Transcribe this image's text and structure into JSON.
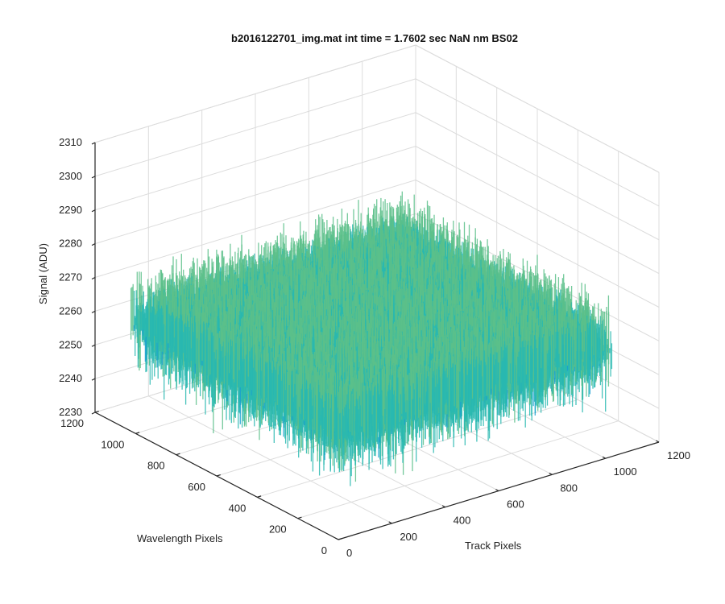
{
  "chart_data": {
    "type": "surface",
    "title": "b2016122701_img.mat int time = 1.7602 sec  NaN nm BS02",
    "xlabel": "Track Pixels",
    "ylabel": "Wavelength Pixels",
    "zlabel": "Signal (ADU)",
    "xlim": [
      0,
      1200
    ],
    "ylim": [
      0,
      1200
    ],
    "zlim": [
      2230,
      2310
    ],
    "x_ticks": [
      0,
      200,
      400,
      600,
      800,
      1000,
      1200
    ],
    "y_ticks": [
      0,
      200,
      400,
      600,
      800,
      1000,
      1200
    ],
    "z_ticks": [
      2230,
      2240,
      2250,
      2260,
      2270,
      2280,
      2290,
      2300,
      2310
    ],
    "x_tick_labels": [
      "0",
      "200",
      "400",
      "600",
      "800",
      "1000",
      "1200"
    ],
    "y_tick_labels": [
      "0",
      "200",
      "400",
      "600",
      "800",
      "1000",
      "1200"
    ],
    "z_tick_labels": [
      "2230",
      "2240",
      "2250",
      "2260",
      "2270",
      "2280",
      "2290",
      "2300",
      "2310"
    ],
    "data_extent": {
      "x": [
        1,
        1024
      ],
      "y": [
        1,
        1024
      ]
    },
    "signal_mean": 2268,
    "signal_noise_range": [
      2238,
      2305
    ],
    "grid": true,
    "colormap": [
      "#0072bd",
      "#1a9fd0",
      "#29b8b0",
      "#5cc08a",
      "#a8c85a",
      "#e4c238"
    ]
  }
}
